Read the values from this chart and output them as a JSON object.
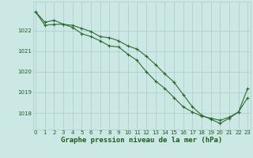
{
  "xlabel": "Graphe pression niveau de la mer (hPa)",
  "hours": [
    0,
    1,
    2,
    3,
    4,
    5,
    6,
    7,
    8,
    9,
    10,
    11,
    12,
    13,
    14,
    15,
    16,
    17,
    18,
    19,
    20,
    21,
    22,
    23
  ],
  "line1": [
    1022.9,
    1022.4,
    1022.5,
    1022.3,
    1022.15,
    1021.85,
    1021.7,
    1021.5,
    1021.25,
    1021.2,
    1020.85,
    1020.55,
    1020.0,
    1019.55,
    1019.2,
    1018.75,
    1018.3,
    1018.05,
    1017.85,
    1017.75,
    1017.65,
    1017.8,
    1018.05,
    1018.75
  ],
  "line2": [
    1022.9,
    1022.25,
    1022.3,
    1022.3,
    1022.25,
    1022.1,
    1021.95,
    1021.7,
    1021.65,
    1021.5,
    1021.25,
    1021.1,
    1020.75,
    1020.35,
    1019.9,
    1019.5,
    1018.9,
    1018.3,
    1017.9,
    1017.7,
    1017.5,
    1017.75,
    1018.05,
    1019.2
  ],
  "line_color": "#2d6b2d",
  "bg_color": "#cce8e4",
  "grid_color": "#aacccc",
  "text_color": "#1a5c1a",
  "ylim_min": 1017.2,
  "ylim_max": 1023.4,
  "yticks": [
    1018,
    1019,
    1020,
    1021,
    1022
  ],
  "xticks": [
    0,
    1,
    2,
    3,
    4,
    5,
    6,
    7,
    8,
    9,
    10,
    11,
    12,
    13,
    14,
    15,
    16,
    17,
    18,
    19,
    20,
    21,
    22,
    23
  ],
  "tick_fontsize": 5.0,
  "xlabel_fontsize": 6.5,
  "linewidth": 0.8,
  "markersize": 2.2
}
